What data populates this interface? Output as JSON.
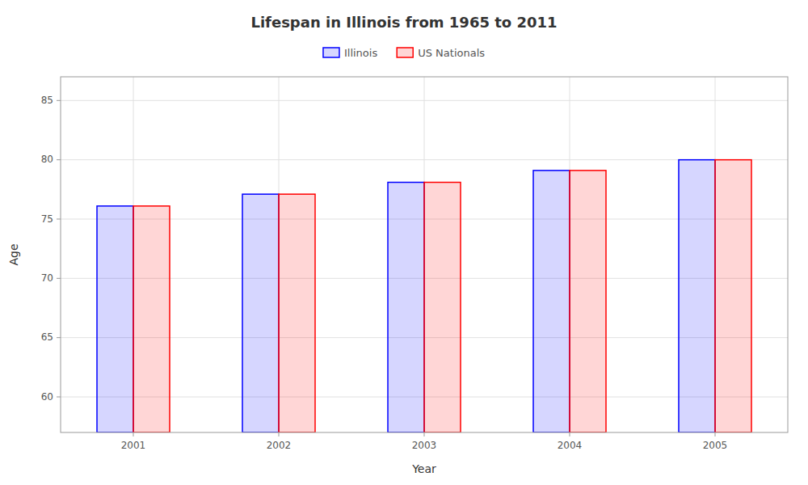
{
  "chart_data": {
    "type": "bar",
    "title": "Lifespan in Illinois from 1965 to 2011",
    "x_label": "Year",
    "y_label": "Age",
    "categories": [
      "2001",
      "2002",
      "2003",
      "2004",
      "2005"
    ],
    "series": [
      {
        "name": "Illinois",
        "color": "#0000ff",
        "values": [
          76.1,
          77.1,
          78.1,
          79.1,
          80.0
        ]
      },
      {
        "name": "US Nationals",
        "color": "#ff0000",
        "values": [
          76.1,
          77.1,
          78.1,
          79.1,
          80.0
        ]
      }
    ],
    "ylim": [
      57,
      87
    ],
    "yticks": [
      60,
      65,
      70,
      75,
      80,
      85
    ],
    "grid": true,
    "legend": "top"
  }
}
